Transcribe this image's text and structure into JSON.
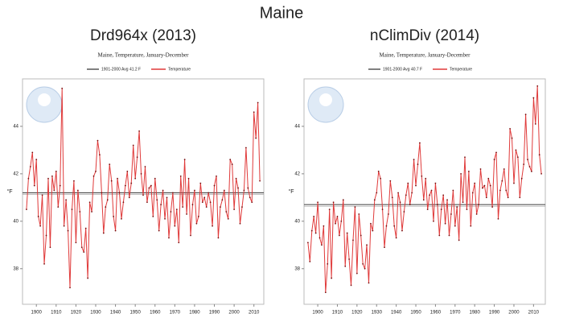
{
  "title": "Maine",
  "chart_data": [
    {
      "type": "line",
      "title": "Drd964x (2013)",
      "subtitle": "Maine, Temperature, January-December",
      "y_label": "°F",
      "x": [
        1895,
        1896,
        1897,
        1898,
        1899,
        1900,
        1901,
        1902,
        1903,
        1904,
        1905,
        1906,
        1907,
        1908,
        1909,
        1910,
        1911,
        1912,
        1913,
        1914,
        1915,
        1916,
        1917,
        1918,
        1919,
        1920,
        1921,
        1922,
        1923,
        1924,
        1925,
        1926,
        1927,
        1928,
        1929,
        1930,
        1931,
        1932,
        1933,
        1934,
        1935,
        1936,
        1937,
        1938,
        1939,
        1940,
        1941,
        1942,
        1943,
        1944,
        1945,
        1946,
        1947,
        1948,
        1949,
        1950,
        1951,
        1952,
        1953,
        1954,
        1955,
        1956,
        1957,
        1958,
        1959,
        1960,
        1961,
        1962,
        1963,
        1964,
        1965,
        1966,
        1967,
        1968,
        1969,
        1970,
        1971,
        1972,
        1973,
        1974,
        1975,
        1976,
        1977,
        1978,
        1979,
        1980,
        1981,
        1982,
        1983,
        1984,
        1985,
        1986,
        1987,
        1988,
        1989,
        1990,
        1991,
        1992,
        1993,
        1994,
        1995,
        1996,
        1997,
        1998,
        1999,
        2000,
        2001,
        2002,
        2003,
        2004,
        2005,
        2006,
        2007,
        2008,
        2009,
        2010,
        2011,
        2012,
        2013
      ],
      "series": [
        {
          "name": "Temperature",
          "color": "#e03a3a",
          "values": [
            40.5,
            41.8,
            42.3,
            42.9,
            41.5,
            42.6,
            40.2,
            39.8,
            41.1,
            38.2,
            39.4,
            41.8,
            38.9,
            41.9,
            41.3,
            42.1,
            40.6,
            41.5,
            45.6,
            39.8,
            40.9,
            39.6,
            37.2,
            40.5,
            41.7,
            39.1,
            41.3,
            40.4,
            38.9,
            38.7,
            39.7,
            37.6,
            40.8,
            40.4,
            41.9,
            42.1,
            43.4,
            42.8,
            41.2,
            39.5,
            40.6,
            40.9,
            42.4,
            41.7,
            40.2,
            39.6,
            41.8,
            41.2,
            40.1,
            40.8,
            41.5,
            42.1,
            41.0,
            41.6,
            43.2,
            41.8,
            42.7,
            43.8,
            42.0,
            41.1,
            42.3,
            40.8,
            41.4,
            41.5,
            40.2,
            41.8,
            40.9,
            39.6,
            40.7,
            41.3,
            40.1,
            41.0,
            39.3,
            40.4,
            41.2,
            39.8,
            40.5,
            39.1,
            41.9,
            40.6,
            42.6,
            40.3,
            41.8,
            39.4,
            40.7,
            41.3,
            39.9,
            40.2,
            41.6,
            40.8,
            41.0,
            40.6,
            41.2,
            40.8,
            39.8,
            41.5,
            41.9,
            39.3,
            40.6,
            40.9,
            41.3,
            40.4,
            40.1,
            42.6,
            42.4,
            40.5,
            41.8,
            41.4,
            39.9,
            40.6,
            41.3,
            43.1,
            41.4,
            41.0,
            40.8,
            44.6,
            43.5,
            45.0,
            41.7
          ]
        }
      ],
      "reference_line": {
        "name": "1901-2000 Avg 41.2 F",
        "value": 41.2,
        "color": "#555555"
      },
      "xlim": [
        1893,
        2015
      ],
      "xticks": [
        1900,
        1910,
        1920,
        1930,
        1940,
        1950,
        1960,
        1970,
        1980,
        1990,
        2000,
        2010
      ],
      "ylim": [
        36.5,
        46
      ],
      "yticks": [
        38,
        40,
        42,
        44
      ]
    },
    {
      "type": "line",
      "title": "nClimDiv (2014)",
      "subtitle": "Maine, Temperature, January-December",
      "y_label": "°F",
      "x": [
        1895,
        1896,
        1897,
        1898,
        1899,
        1900,
        1901,
        1902,
        1903,
        1904,
        1905,
        1906,
        1907,
        1908,
        1909,
        1910,
        1911,
        1912,
        1913,
        1914,
        1915,
        1916,
        1917,
        1918,
        1919,
        1920,
        1921,
        1922,
        1923,
        1924,
        1925,
        1926,
        1927,
        1928,
        1929,
        1930,
        1931,
        1932,
        1933,
        1934,
        1935,
        1936,
        1937,
        1938,
        1939,
        1940,
        1941,
        1942,
        1943,
        1944,
        1945,
        1946,
        1947,
        1948,
        1949,
        1950,
        1951,
        1952,
        1953,
        1954,
        1955,
        1956,
        1957,
        1958,
        1959,
        1960,
        1961,
        1962,
        1963,
        1964,
        1965,
        1966,
        1967,
        1968,
        1969,
        1970,
        1971,
        1972,
        1973,
        1974,
        1975,
        1976,
        1977,
        1978,
        1979,
        1980,
        1981,
        1982,
        1983,
        1984,
        1985,
        1986,
        1987,
        1988,
        1989,
        1990,
        1991,
        1992,
        1993,
        1994,
        1995,
        1996,
        1997,
        1998,
        1999,
        2000,
        2001,
        2002,
        2003,
        2004,
        2005,
        2006,
        2007,
        2008,
        2009,
        2010,
        2011,
        2012,
        2013,
        2014
      ],
      "series": [
        {
          "name": "Temperature",
          "color": "#e03a3a",
          "values": [
            39.1,
            38.3,
            39.6,
            40.2,
            39.5,
            40.8,
            39.3,
            39.0,
            39.8,
            37.0,
            38.2,
            40.5,
            37.6,
            40.8,
            39.9,
            40.2,
            39.4,
            40.0,
            40.9,
            38.1,
            39.5,
            38.4,
            37.3,
            39.2,
            40.6,
            37.8,
            40.3,
            39.4,
            38.2,
            38.0,
            39.0,
            37.4,
            39.9,
            39.6,
            40.9,
            41.2,
            42.1,
            41.8,
            40.5,
            38.9,
            39.8,
            40.3,
            41.7,
            41.0,
            39.8,
            39.3,
            41.2,
            40.8,
            39.6,
            40.4,
            41.1,
            41.6,
            40.7,
            41.2,
            42.6,
            41.5,
            42.4,
            43.3,
            41.9,
            40.9,
            41.8,
            40.5,
            41.1,
            41.3,
            40.0,
            41.6,
            40.7,
            39.4,
            40.5,
            41.1,
            39.9,
            40.9,
            39.4,
            40.3,
            41.3,
            39.8,
            40.6,
            39.2,
            42.0,
            40.8,
            42.7,
            40.5,
            42.1,
            39.8,
            41.2,
            41.6,
            40.3,
            40.7,
            42.2,
            41.4,
            41.5,
            41.0,
            41.8,
            41.5,
            40.6,
            42.6,
            42.9,
            40.1,
            41.3,
            41.7,
            42.2,
            41.3,
            41.0,
            43.9,
            43.5,
            41.6,
            43.0,
            42.7,
            41.0,
            41.8,
            42.4,
            44.5,
            42.6,
            42.3,
            42.1,
            45.2,
            44.1,
            45.7,
            42.8,
            42.0
          ]
        }
      ],
      "reference_line": {
        "name": "1901-2000 Avg 40.7 F",
        "value": 40.7,
        "color": "#555555"
      },
      "xlim": [
        1893,
        2016
      ],
      "xticks": [
        1900,
        1910,
        1920,
        1930,
        1940,
        1950,
        1960,
        1970,
        1980,
        1990,
        2000,
        2010
      ],
      "ylim": [
        36.5,
        46
      ],
      "yticks": [
        38,
        40,
        42,
        44
      ]
    }
  ]
}
